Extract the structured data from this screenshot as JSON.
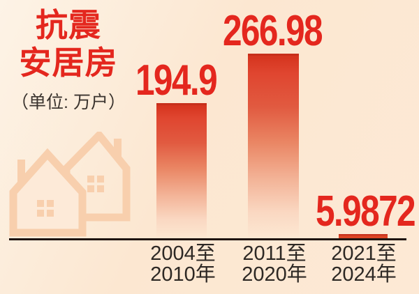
{
  "title": {
    "line1": "抗震",
    "line2": "安居房",
    "unit": "（单位: 万户）"
  },
  "colors": {
    "accent_red": "#e4271e",
    "bar_top": "#d5341e",
    "bar_cap": "#c72f1b",
    "bar_tiny": "#dc4525",
    "watermark": "#f8cfad",
    "background_top": "#fdf3e6",
    "background_bottom": "#fce7d1",
    "axis": "#1e1410",
    "tick_text": "#2d2824"
  },
  "icons": {
    "watermark": "house-icons (two overlapping outlined houses with chimneys and four-pane windows)"
  },
  "chart_data": {
    "type": "bar",
    "title": "抗震安居房",
    "unit": "万户",
    "xlabel": "",
    "ylabel": "万户",
    "grid": false,
    "legend": false,
    "categories": [
      "2004至2010年",
      "2011至2020年",
      "2021至2024年"
    ],
    "category_lines": [
      {
        "l1": "2004至",
        "l2": "2010年"
      },
      {
        "l1": "2011至",
        "l2": "2020年"
      },
      {
        "l1": "2021至",
        "l2": "2024年"
      }
    ],
    "values": [
      194.9,
      266.98,
      5.9872
    ],
    "value_labels": [
      "194.9",
      "266.98",
      "5.9872"
    ],
    "ylim": [
      0,
      280
    ]
  }
}
